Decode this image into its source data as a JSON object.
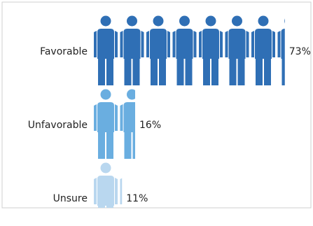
{
  "chart_data": {
    "type": "pictogram",
    "categories": [
      "Favorable",
      "Unfavorable",
      "Unsure"
    ],
    "values": [
      73,
      16,
      11
    ],
    "value_labels": [
      "73%",
      "16%",
      "11%"
    ],
    "colors": [
      "#2f6fb5",
      "#6aaee0",
      "#b9d7ef"
    ]
  }
}
